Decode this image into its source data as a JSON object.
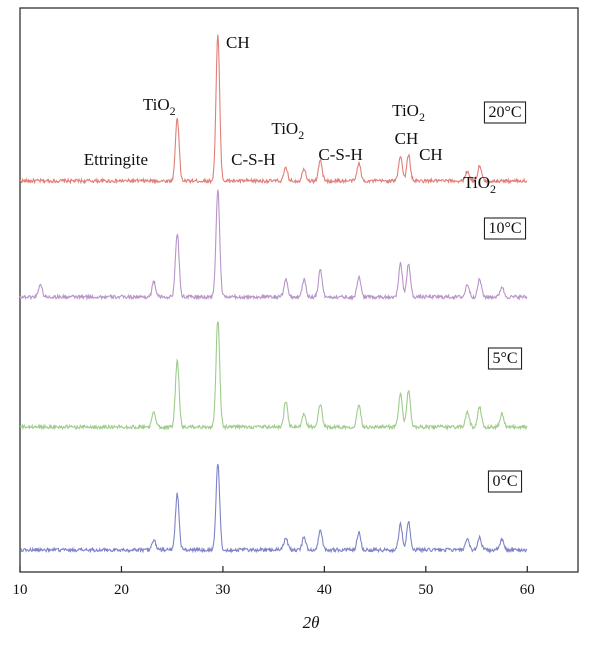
{
  "chart_data": {
    "type": "line",
    "title": "",
    "xlabel": "2θ",
    "ylabel": "",
    "xlim": [
      10,
      65
    ],
    "x_ticks": [
      10,
      20,
      30,
      40,
      50,
      60
    ],
    "grid": false,
    "y_ticks": false,
    "offset_plot": true,
    "series": [
      {
        "name": "20°C",
        "color": "#e07f78",
        "x": [
          10,
          12,
          20,
          23.2,
          25.5,
          27.5,
          29.5,
          31,
          33,
          36.2,
          38,
          39.6,
          41.5,
          43.4,
          45.5,
          47.5,
          48.3,
          49.5,
          52,
          54.1,
          55.3,
          57.5,
          60
        ],
        "y": [
          0.01,
          0.03,
          0.01,
          0.03,
          0.25,
          0.01,
          0.57,
          0.01,
          0.02,
          0.05,
          0.05,
          0.08,
          0.01,
          0.07,
          0.02,
          0.1,
          0.1,
          0.02,
          0.01,
          0.04,
          0.06,
          0.03,
          0.01
        ]
      },
      {
        "name": "10°C",
        "color": "#b795c9",
        "x": [
          10,
          12,
          20,
          23.2,
          25.5,
          27.5,
          29.5,
          31,
          33,
          36.2,
          38,
          39.6,
          41.5,
          43.4,
          45.5,
          47.5,
          48.3,
          49.5,
          52,
          54.1,
          55.3,
          57.5,
          60
        ],
        "y": [
          0.02,
          0.05,
          0.02,
          0.06,
          0.25,
          0.02,
          0.42,
          0.02,
          0.02,
          0.07,
          0.07,
          0.11,
          0.02,
          0.08,
          0.03,
          0.13,
          0.13,
          0.03,
          0.02,
          0.05,
          0.07,
          0.04,
          0.02
        ]
      },
      {
        "name": "5°C",
        "color": "#9fcc8c",
        "x": [
          10,
          12,
          20,
          23.2,
          25.5,
          27.5,
          29.5,
          31,
          33,
          36.2,
          38,
          39.6,
          41.5,
          43.4,
          45.5,
          47.5,
          48.3,
          49.5,
          52,
          54.1,
          55.3,
          57.5,
          60
        ],
        "y": [
          0.02,
          0.03,
          0.02,
          0.06,
          0.26,
          0.02,
          0.42,
          0.02,
          0.02,
          0.1,
          0.05,
          0.09,
          0.02,
          0.09,
          0.03,
          0.13,
          0.14,
          0.03,
          0.02,
          0.06,
          0.08,
          0.05,
          0.02
        ]
      },
      {
        "name": "0°C",
        "color": "#7d83c6",
        "x": [
          10,
          12,
          20,
          23.2,
          25.5,
          27.5,
          29.5,
          31,
          33,
          36.2,
          38,
          39.6,
          41.5,
          43.4,
          45.5,
          47.5,
          48.3,
          49.5,
          52,
          54.1,
          55.3,
          57.5,
          60
        ],
        "y": [
          0.02,
          0.03,
          0.02,
          0.04,
          0.22,
          0.02,
          0.34,
          0.02,
          0.02,
          0.05,
          0.05,
          0.08,
          0.02,
          0.07,
          0.03,
          0.1,
          0.11,
          0.02,
          0.02,
          0.04,
          0.05,
          0.04,
          0.02
        ]
      }
    ],
    "peak_labels": [
      {
        "text": "Ettringite",
        "x": 23.2,
        "sub": ""
      },
      {
        "text": "TiO",
        "x": 25.5,
        "sub": "2"
      },
      {
        "text": "CH",
        "x": 29.5,
        "sub": ""
      },
      {
        "text": "C-S-H",
        "x": 33,
        "sub": ""
      },
      {
        "text": "TiO",
        "x": 36.2,
        "sub": "2"
      },
      {
        "text": "C-S-H",
        "x": 41.5,
        "sub": ""
      },
      {
        "text": "CH",
        "x": 47.5,
        "sub": ""
      },
      {
        "text": "TiO",
        "x": 48.3,
        "sub": "2"
      },
      {
        "text": "CH",
        "x": 50.5,
        "sub": ""
      },
      {
        "text": "TiO",
        "x": 55.3,
        "sub": "2"
      }
    ]
  }
}
